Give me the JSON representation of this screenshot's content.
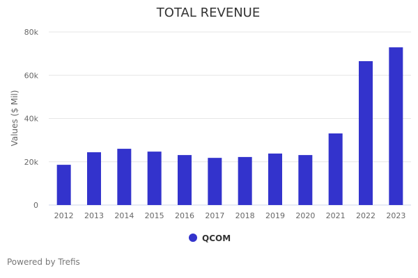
{
  "chart_data": {
    "type": "bar",
    "title": "TOTAL REVENUE",
    "xlabel": "",
    "ylabel": "Values ($ Mil)",
    "ylim": [
      0,
      80000
    ],
    "yticks": [
      0,
      20000,
      40000,
      60000,
      80000
    ],
    "ytick_labels": [
      "0",
      "20k",
      "40k",
      "60k",
      "80k"
    ],
    "grid": true,
    "categories": [
      "2012",
      "2013",
      "2014",
      "2015",
      "2016",
      "2017",
      "2018",
      "2019",
      "2020",
      "2021",
      "2022",
      "2023"
    ],
    "series": [
      {
        "name": "QCOM",
        "color": "#3333cc",
        "values": [
          18600,
          24400,
          26000,
          24700,
          23100,
          21800,
          22200,
          23800,
          23100,
          33100,
          66500,
          72900
        ]
      }
    ],
    "legend": {
      "position": "bottom-center",
      "entries": [
        "QCOM"
      ]
    }
  },
  "credit": "Powered by Trefis"
}
